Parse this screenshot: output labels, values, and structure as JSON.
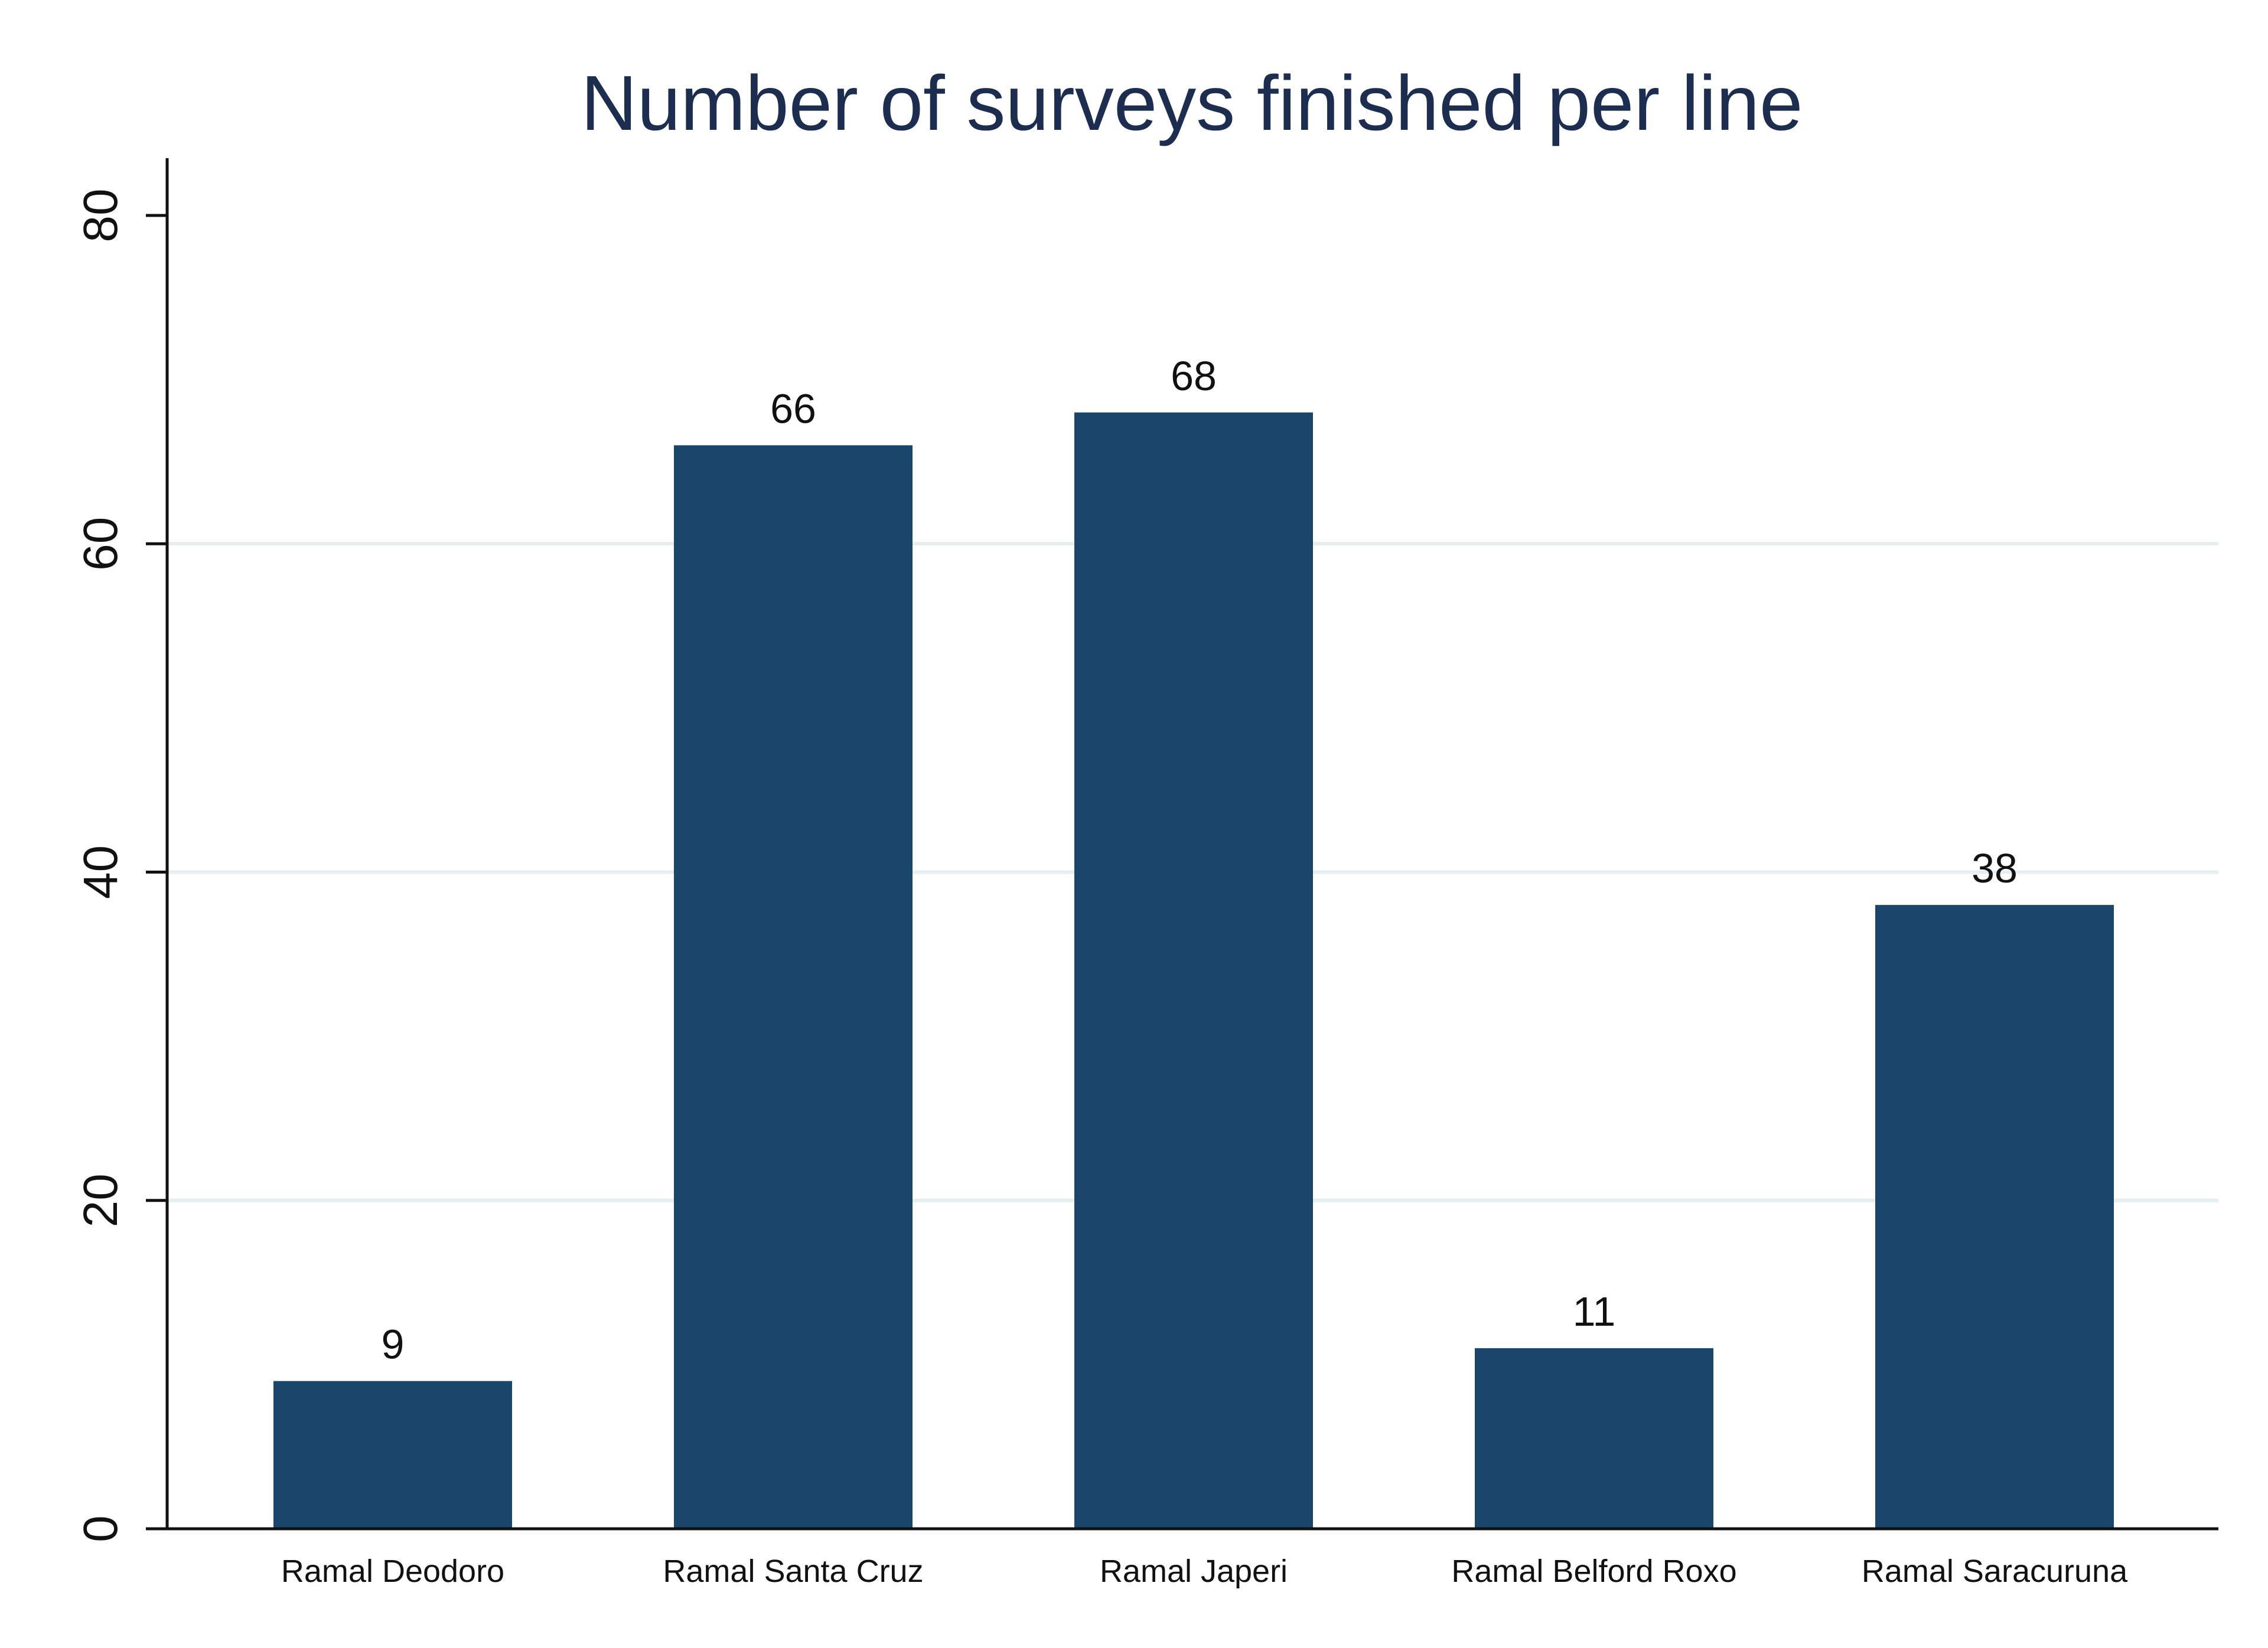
{
  "chart_data": {
    "type": "bar",
    "title": "Number of surveys finished per line",
    "xlabel": "",
    "ylabel": "",
    "categories": [
      "Ramal Deodoro",
      "Ramal Santa Cruz",
      "Ramal Japeri",
      "Ramal Belford Roxo",
      "Ramal Saracuruna"
    ],
    "values": [
      9,
      66,
      68,
      11,
      38
    ],
    "data_labels": [
      "9",
      "66",
      "68",
      "11",
      "38"
    ],
    "ylim": [
      0,
      80
    ],
    "yticks": [
      0,
      20,
      40,
      60,
      80
    ],
    "ytick_labels": [
      "0",
      "20",
      "40",
      "60",
      "80"
    ],
    "grid": true,
    "legend": "none",
    "bar_color": "#1b466c",
    "title_color": "#1c2d4f",
    "grid_color": "#e6eeef"
  }
}
